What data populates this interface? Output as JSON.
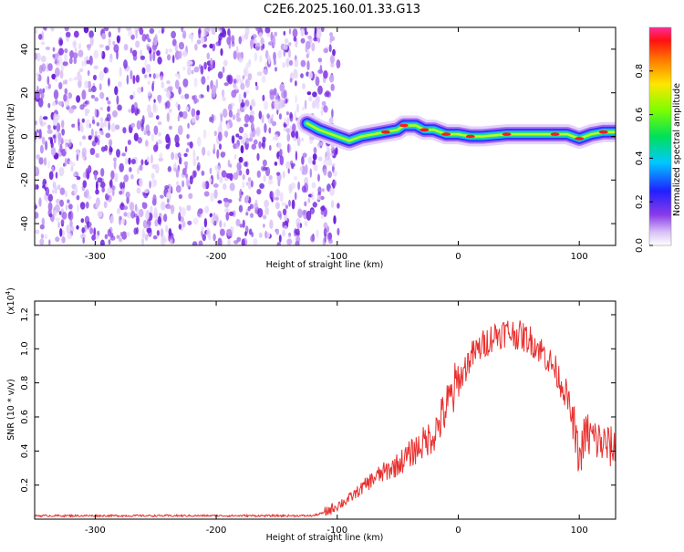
{
  "title": "C2E6.2025.160.01.33.G13",
  "colors": {
    "snr_line": "#e8302f",
    "noise_purple": "#7a2fe6",
    "frame": "#000000"
  },
  "chart_data": [
    {
      "type": "heatmap",
      "xlabel": "Height of straight line (km)",
      "ylabel": "Frequency (Hz)",
      "xlim": [
        -350,
        130
      ],
      "ylim": [
        -50,
        50
      ],
      "xticks": [
        -300,
        -200,
        -100,
        0,
        100
      ],
      "xtick_labels": [
        "-300",
        "-200",
        "-100",
        "0",
        "100"
      ],
      "yticks": [
        -40,
        -20,
        0,
        20,
        40
      ],
      "ytick_labels": [
        "-40",
        "-20",
        "0",
        "20",
        "40"
      ],
      "colorbar": {
        "label": "Normalized spectral amplitude",
        "range": [
          0,
          1
        ],
        "ticks": [
          0.0,
          0.2,
          0.4,
          0.6,
          0.8
        ],
        "tick_labels": [
          "0.0",
          "0.2",
          "0.4",
          "0.6",
          "0.8"
        ]
      },
      "noise_region_x": [
        -350,
        -105
      ],
      "signal_ridge": [
        {
          "x": -125,
          "y": 6
        },
        {
          "x": -115,
          "y": 3
        },
        {
          "x": -100,
          "y": 0
        },
        {
          "x": -90,
          "y": -2
        },
        {
          "x": -80,
          "y": 0
        },
        {
          "x": -70,
          "y": 1
        },
        {
          "x": -60,
          "y": 2
        },
        {
          "x": -50,
          "y": 3
        },
        {
          "x": -45,
          "y": 5
        },
        {
          "x": -35,
          "y": 5
        },
        {
          "x": -28,
          "y": 3
        },
        {
          "x": -20,
          "y": 3
        },
        {
          "x": -10,
          "y": 1
        },
        {
          "x": 0,
          "y": 1
        },
        {
          "x": 10,
          "y": 0
        },
        {
          "x": 20,
          "y": 0
        },
        {
          "x": 40,
          "y": 1
        },
        {
          "x": 60,
          "y": 1
        },
        {
          "x": 80,
          "y": 1
        },
        {
          "x": 90,
          "y": 1
        },
        {
          "x": 100,
          "y": -1
        },
        {
          "x": 110,
          "y": 1
        },
        {
          "x": 120,
          "y": 2
        },
        {
          "x": 130,
          "y": 2
        }
      ]
    },
    {
      "type": "line",
      "xlabel": "Height of straight line (km)",
      "ylabel": "SNR (10 * v/v)",
      "multiplier_label": "(x10",
      "multiplier_exp": "4",
      "xlim": [
        -350,
        130
      ],
      "ylim": [
        0,
        1.28
      ],
      "xticks": [
        -300,
        -200,
        -100,
        0,
        100
      ],
      "xtick_labels": [
        "-300",
        "-200",
        "-100",
        "0",
        "100"
      ],
      "yticks": [
        0.2,
        0.4,
        0.6,
        0.8,
        1.0,
        1.2
      ],
      "ytick_labels": [
        "0.2",
        "0.4",
        "0.6",
        "0.8",
        "1.0",
        "1.2"
      ],
      "series": [
        {
          "x": [
            -350,
            -300,
            -250,
            -200,
            -150,
            -120,
            -110,
            -100,
            -90,
            -80,
            -70,
            -60,
            -50,
            -40,
            -30,
            -20,
            -10,
            0,
            10,
            20,
            30,
            40,
            50,
            60,
            70,
            80,
            90,
            95,
            100,
            105,
            110,
            120,
            130
          ],
          "y": [
            0.02,
            0.02,
            0.02,
            0.02,
            0.02,
            0.02,
            0.04,
            0.08,
            0.12,
            0.18,
            0.24,
            0.28,
            0.32,
            0.38,
            0.44,
            0.5,
            0.65,
            0.8,
            0.95,
            1.02,
            1.08,
            1.1,
            1.08,
            1.05,
            0.98,
            0.88,
            0.72,
            0.55,
            0.35,
            0.5,
            0.48,
            0.44,
            0.41
          ]
        }
      ]
    }
  ]
}
